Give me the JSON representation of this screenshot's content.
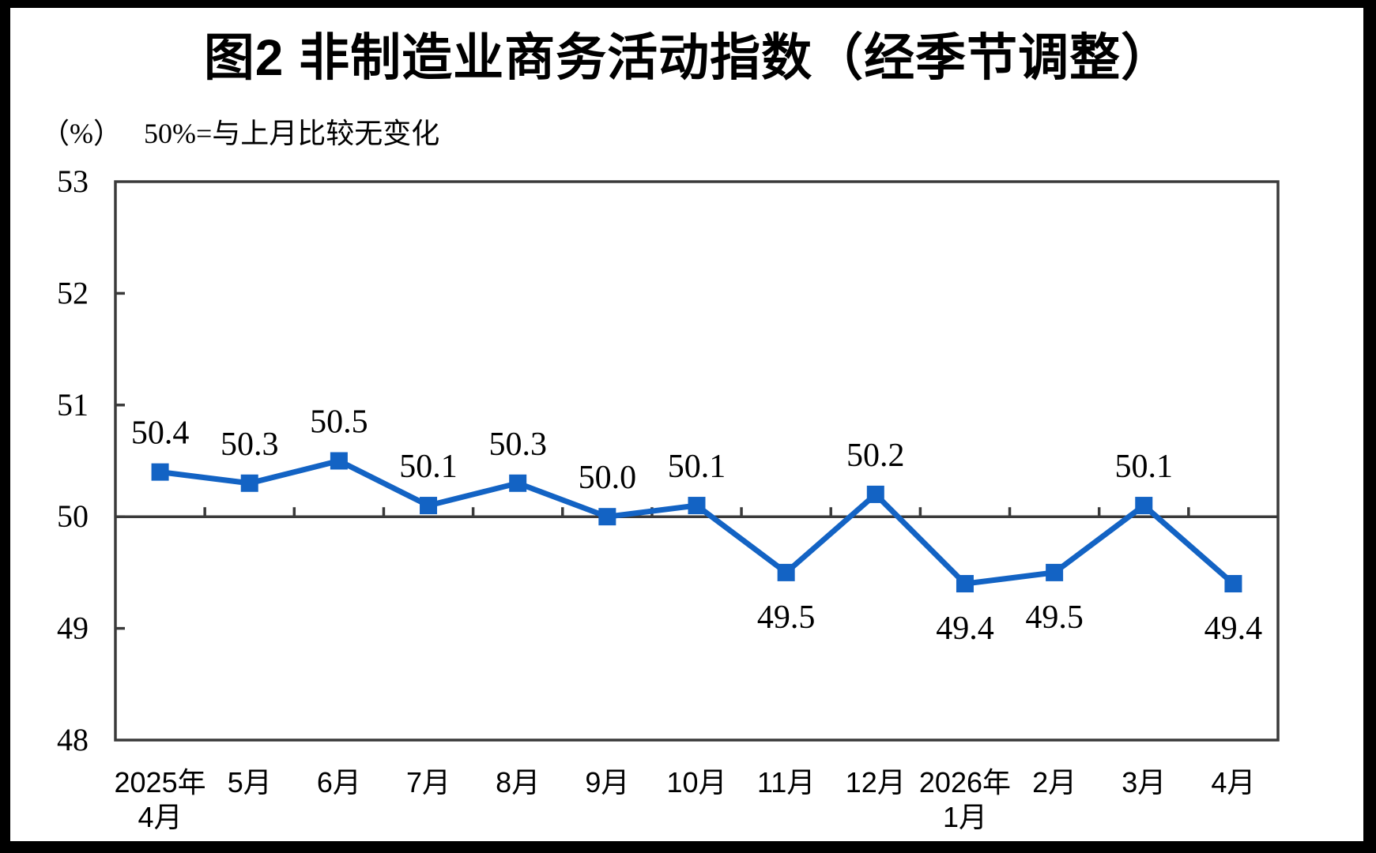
{
  "window": {
    "background": "#FFFFFF",
    "frame_color": "#000000"
  },
  "header": {
    "title": "图2  非制造业商务活动指数（经季节调整）"
  },
  "subtitle": {
    "unit": "（%）",
    "note": "50%=与上月比较无变化"
  },
  "chart_data": {
    "type": "line",
    "title": "图2  非制造业商务活动指数（经季节调整）",
    "unit_label": "（%）",
    "annotation": "50%=与上月比较无变化",
    "categories": [
      [
        "2025年",
        "4月"
      ],
      [
        "5月"
      ],
      [
        "6月"
      ],
      [
        "7月"
      ],
      [
        "8月"
      ],
      [
        "9月"
      ],
      [
        "10月"
      ],
      [
        "11月"
      ],
      [
        "12月"
      ],
      [
        "2026年",
        "1月"
      ],
      [
        "2月"
      ],
      [
        "3月"
      ],
      [
        "4月"
      ]
    ],
    "series": [
      {
        "name": "非制造业商务活动指数",
        "color": "#1363C4",
        "marker": "square",
        "values": [
          50.4,
          50.3,
          50.5,
          50.1,
          50.3,
          50.0,
          50.1,
          49.5,
          50.2,
          49.4,
          49.5,
          50.1,
          49.4
        ],
        "labels": [
          "50.4",
          "50.3",
          "50.5",
          "50.1",
          "50.3",
          "50.0",
          "50.1",
          "49.5",
          "50.2",
          "49.4",
          "49.5",
          "50.1",
          "49.4"
        ]
      }
    ],
    "ylim": [
      48,
      53
    ],
    "yticks": [
      48,
      49,
      50,
      51,
      52,
      53
    ],
    "reference_line": 50,
    "grid": false,
    "legend": false,
    "axis_color": "#3A3A3A"
  }
}
